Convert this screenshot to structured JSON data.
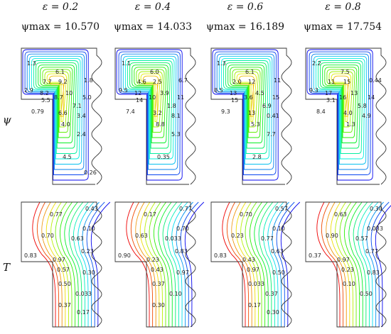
{
  "columns": [
    {
      "eps_label": "ε = 0.2",
      "psi_label": "ψmax = 10.570",
      "psi_contour_labels": [
        "1.3",
        "6.1",
        "7.7",
        "2.9",
        "8.2",
        "9.2",
        "5.5",
        "8.7",
        "10",
        "1.8",
        "5.0",
        "7.1",
        "3.4",
        "0.79",
        "6.6",
        "4.0",
        "2.4",
        "4.5",
        "0.26"
      ],
      "t_contour_labels": [
        "0.43",
        "0.77",
        "0.10",
        "0.70",
        "0.63",
        "0.23",
        "0.83",
        "0.97",
        "0.57",
        "0.30",
        "0.50",
        "0.033",
        "0.37",
        "0.17"
      ]
    },
    {
      "eps_label": "ε = 0.4",
      "psi_label": "ψmax = 14.033",
      "psi_contour_labels": [
        "1.1",
        "6.0",
        "4.6",
        "9.5",
        "12",
        "2.5",
        "14",
        "10",
        "3.9",
        "6.7",
        "11",
        "1.8",
        "8.1",
        "7.4",
        "3.2",
        "8.8",
        "5.3",
        "0.35"
      ],
      "t_contour_labels": [
        "0.77",
        "0.17",
        "0.70",
        "0.63",
        "0.033",
        "0.83",
        "0.90",
        "0.23",
        "0.43",
        "0.97",
        "0.37",
        "0.10",
        "0.30"
      ]
    },
    {
      "eps_label": "ε = 0.6",
      "psi_label": "ψmax = 16.189",
      "psi_contour_labels": [
        "1.3",
        "6.1",
        "2.0",
        "8.5",
        "13",
        "12",
        "15",
        "3.6",
        "4.5",
        "11",
        "15",
        "6.9",
        "0.41",
        "9.3",
        "13",
        "5.3",
        "7.7",
        "2.8"
      ],
      "t_contour_labels": [
        "0.57",
        "0.70",
        "0.10",
        "0.23",
        "0.77",
        "0.63",
        "0.83",
        "0.43",
        "0.97",
        "0.50",
        "0.033",
        "0.37",
        "0.17",
        "0.30"
      ]
    },
    {
      "eps_label": "ε = 0.8",
      "psi_label": "ψmax = 17.754",
      "psi_contour_labels": [
        "2.2",
        "7.5",
        "11",
        "9.3",
        "17",
        "15",
        "3.1",
        "16",
        "13",
        "0.44",
        "14",
        "5.8",
        "4.9",
        "8.4",
        "4.0",
        "1.3"
      ],
      "t_contour_labels": [
        "0.30",
        "0.63",
        "0.033",
        "0.90",
        "0.57",
        "0.77",
        "0.37",
        "0.97",
        "0.23",
        "0.83",
        "0.10",
        "0.50"
      ]
    }
  ],
  "row_labels": {
    "psi": "ψ",
    "temp": "T"
  }
}
